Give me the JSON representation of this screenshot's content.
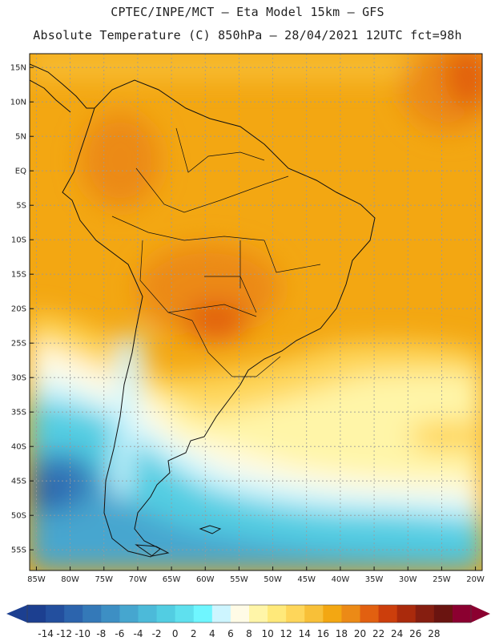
{
  "header": {
    "line1": "CPTEC/INPE/MCT –  Eta Model 15km – GFS",
    "line2": "Absolute Temperature (C) 850hPa – 28/04/2021 12UTC fct=98h"
  },
  "map": {
    "lat_labels": [
      "15N",
      "10N",
      "5N",
      "EQ",
      "5S",
      "10S",
      "15S",
      "20S",
      "25S",
      "30S",
      "35S",
      "40S",
      "45S",
      "50S",
      "55S"
    ],
    "lon_labels": [
      "85W",
      "80W",
      "75W",
      "70W",
      "65W",
      "60W",
      "55W",
      "50W",
      "45W",
      "40W",
      "35W",
      "30W",
      "25W",
      "20W"
    ],
    "lat_values": [
      15,
      10,
      5,
      0,
      -5,
      -10,
      -15,
      -20,
      -25,
      -30,
      -35,
      -40,
      -45,
      -50,
      -55
    ],
    "lon_values": [
      -85,
      -80,
      -75,
      -70,
      -65,
      -60,
      -55,
      -50,
      -45,
      -40,
      -35,
      -30,
      -25,
      -20
    ],
    "extent": {
      "lon_min": -86,
      "lon_max": -19,
      "lat_min": -58,
      "lat_max": 17
    }
  },
  "colorbar": {
    "labels": [
      "-14",
      "-12",
      "-10",
      "-8",
      "-6",
      "-4",
      "-2",
      "0",
      "2",
      "4",
      "6",
      "8",
      "10",
      "12",
      "14",
      "16",
      "18",
      "20",
      "22",
      "24",
      "26",
      "28"
    ],
    "colors": [
      "#1c3f90",
      "#234f9e",
      "#2c64ad",
      "#3479b8",
      "#3d8fc4",
      "#46a6cf",
      "#4cbad9",
      "#52cde2",
      "#5fe0ee",
      "#6ff6ff",
      "#cdf5ff",
      "#fffbe6",
      "#fff5a8",
      "#ffe97a",
      "#fed65a",
      "#f8c038",
      "#f3a712",
      "#ec8a16",
      "#e26010",
      "#cc3e0c",
      "#aa2a0c",
      "#861e10",
      "#6a1410",
      "#8b0030"
    ],
    "under_color": "#1c3f90",
    "over_color": "#8b0030"
  }
}
